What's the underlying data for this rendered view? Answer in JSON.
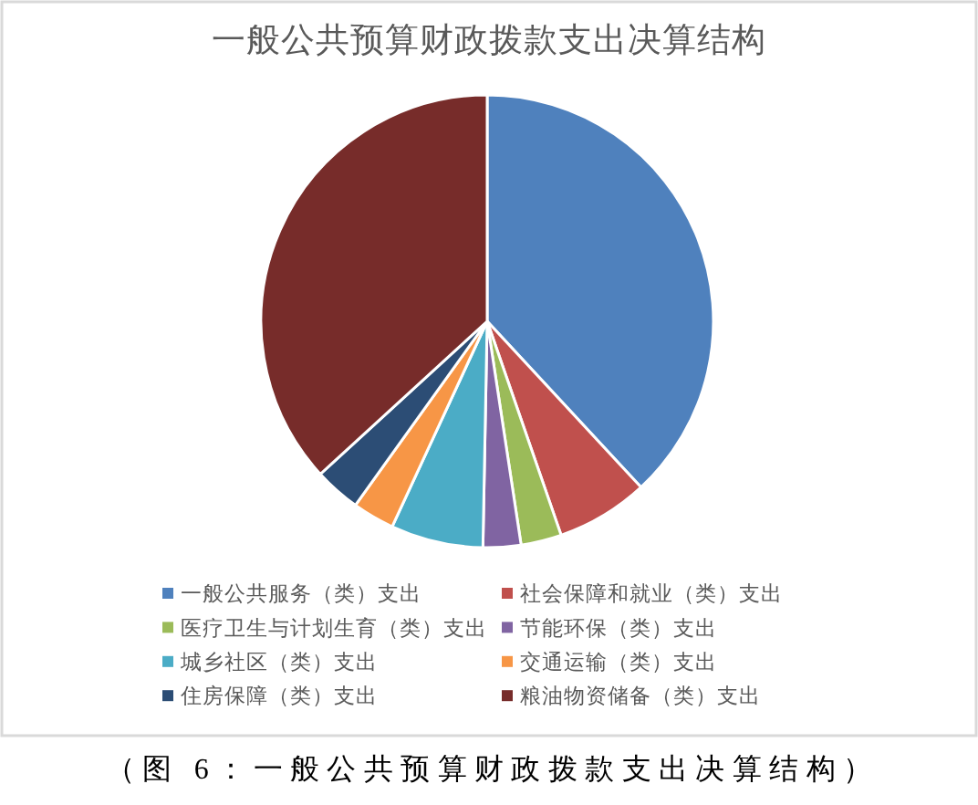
{
  "chart_data": {
    "type": "pie",
    "title": "一般公共预算财政拨款支出决算结构",
    "categories": [
      "一般公共服务（类）支出",
      "社会保障和就业（类）支出",
      "医疗卫生与计划生育（类）支出",
      "节能环保（类）支出",
      "城乡社区（类）支出",
      "交通运输（类）支出",
      "住房保障（类）支出",
      "粮油物资储备（类）支出"
    ],
    "values": [
      38.1,
      6.6,
      2.9,
      2.7,
      6.6,
      3.0,
      3.3,
      36.8
    ],
    "colors": [
      "#4f81bd",
      "#c0504d",
      "#9bbb59",
      "#8064a2",
      "#4bacc6",
      "#f79646",
      "#2c4d75",
      "#772c2a"
    ],
    "legend": "bottom",
    "annotations": [
      "（图 6：一般公共预算财政拨款支出决算结构）"
    ]
  }
}
